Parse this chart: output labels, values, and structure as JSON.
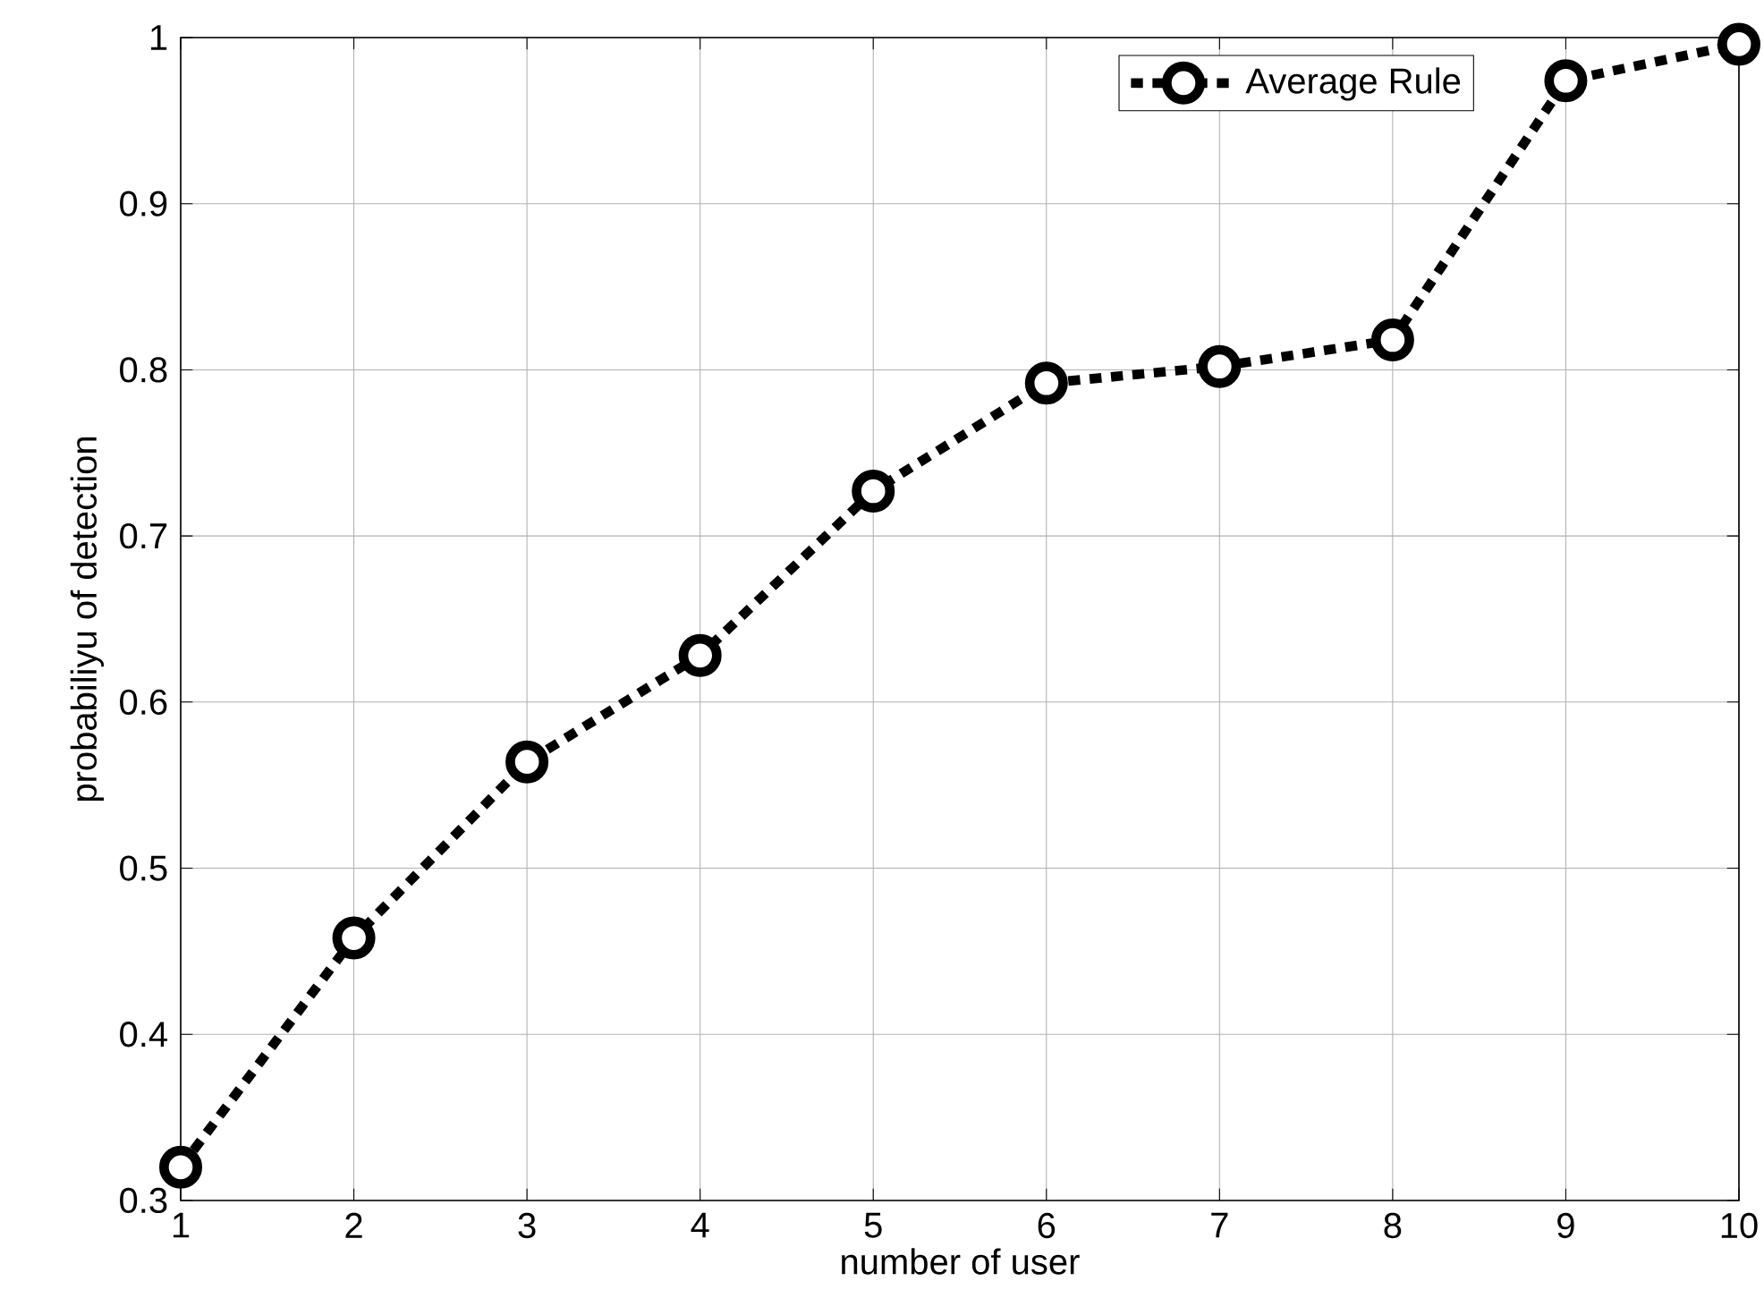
{
  "chart_data": {
    "type": "line",
    "xlabel": "number of user",
    "ylabel": "probabiliyu of detection",
    "x": [
      1,
      2,
      3,
      4,
      5,
      6,
      7,
      8,
      9,
      10
    ],
    "series": [
      {
        "name": "Average Rule",
        "color": "#000000",
        "values": [
          0.32,
          0.458,
          0.564,
          0.628,
          0.727,
          0.792,
          0.802,
          0.818,
          0.974,
          0.996
        ]
      }
    ],
    "xlim": [
      1,
      10
    ],
    "ylim": [
      0.3,
      1
    ],
    "xticks": [
      1,
      2,
      3,
      4,
      5,
      6,
      7,
      8,
      9,
      10
    ],
    "yticks": [
      0.3,
      0.4,
      0.5,
      0.6,
      0.7,
      0.8,
      0.9,
      1
    ],
    "grid": true,
    "legend": "top right",
    "marker": "circle",
    "line_style": "dotted"
  }
}
